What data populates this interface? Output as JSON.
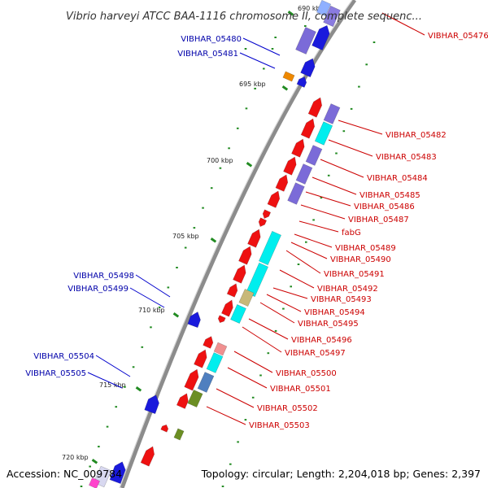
{
  "title": "Vibrio harveyi ATCC BAA-1116 chromosome II, complete sequenc...",
  "accession_text": "Accession: NC_009784",
  "summary_text": "Topology: circular; Length: 2,204,018 bp; Genes: 2,397",
  "colors": {
    "backbone": "#8c8c8c",
    "plus_label": "#cc0000",
    "minus_label": "#0000aa",
    "plus_gene": "#ee1111",
    "minus_gene": "#1a1adc",
    "tick": "#228b22"
  },
  "ticks": [
    {
      "label": "690 kbp"
    },
    {
      "label": "695 kbp"
    },
    {
      "label": "700 kbp"
    },
    {
      "label": "705 kbp"
    },
    {
      "label": "710 kbp"
    },
    {
      "label": "715 kbp"
    },
    {
      "label": "720 kbp"
    }
  ],
  "left_labels": [
    {
      "text": "VIBHAR_05480"
    },
    {
      "text": "VIBHAR_05481"
    },
    {
      "text": "VIBHAR_05498"
    },
    {
      "text": "VIBHAR_05499"
    },
    {
      "text": "VIBHAR_05504"
    },
    {
      "text": "VIBHAR_05505"
    }
  ],
  "right_labels": [
    {
      "text": "VIBHAR_05476"
    },
    {
      "text": "VIBHAR_05482"
    },
    {
      "text": "VIBHAR_05483"
    },
    {
      "text": "VIBHAR_05484"
    },
    {
      "text": "VIBHAR_05485"
    },
    {
      "text": "VIBHAR_05486"
    },
    {
      "text": "VIBHAR_05487"
    },
    {
      "text": "fabG"
    },
    {
      "text": "VIBHAR_05489"
    },
    {
      "text": "VIBHAR_05490"
    },
    {
      "text": "VIBHAR_05491"
    },
    {
      "text": "VIBHAR_05492"
    },
    {
      "text": "VIBHAR_05493"
    },
    {
      "text": "VIBHAR_05494"
    },
    {
      "text": "VIBHAR_05495"
    },
    {
      "text": "VIBHAR_05496"
    },
    {
      "text": "VIBHAR_05497"
    },
    {
      "text": "VIBHAR_05500"
    },
    {
      "text": "VIBHAR_05501"
    },
    {
      "text": "VIBHAR_05502"
    },
    {
      "text": "VIBHAR_05503"
    }
  ]
}
